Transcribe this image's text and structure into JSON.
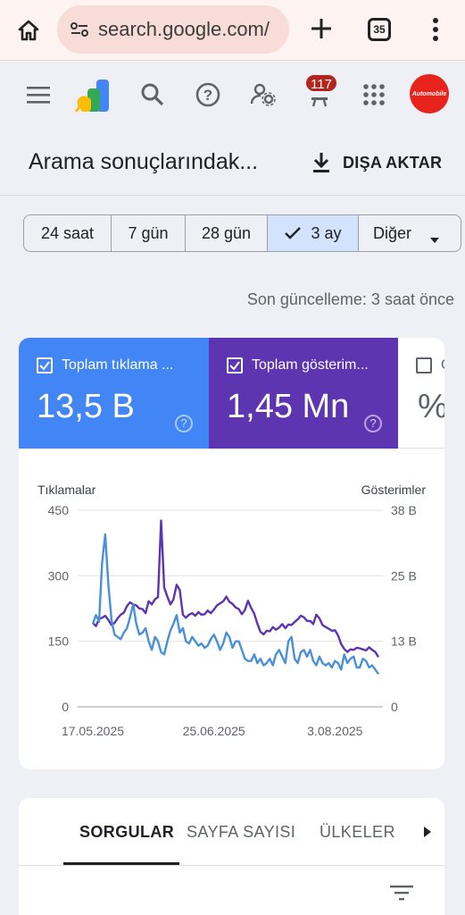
{
  "browser": {
    "url": "search.google.com/",
    "tab_count": "35"
  },
  "header": {
    "notification_count": "117",
    "avatar_text": "Automobile"
  },
  "page": {
    "title": "Arama sonuçlarındak...",
    "export_label": "DIŞA AKTAR"
  },
  "date_range": {
    "options": [
      "24 saat",
      "7 gün",
      "28 gün",
      "3 ay",
      "Diğer"
    ],
    "selected": "3 ay"
  },
  "last_update": "Son güncelleme: 3 saat önce",
  "metrics": {
    "clicks": {
      "label": "Toplam tıklama ...",
      "value": "13,5 B",
      "color": "#4285f4"
    },
    "impressions": {
      "label": "Toplam gösterim...",
      "value": "1,45 Mn",
      "color": "#5e35b1"
    },
    "ctr": {
      "label": "O",
      "value": "%"
    }
  },
  "chart_data": {
    "type": "line",
    "y_left_label": "Tıklamalar",
    "y_right_label": "Gösterimler",
    "y_left_ticks": [
      "450",
      "300",
      "150",
      "0"
    ],
    "y_right_ticks": [
      "38 B",
      "25 B",
      "13 B",
      "0"
    ],
    "ylim_left": [
      0,
      450
    ],
    "ylim_right": [
      0,
      38000
    ],
    "x_tick_labels": [
      "17.05.2025",
      "25.06.2025",
      "3.08.2025"
    ],
    "x_tick_days": [
      1,
      40,
      79
    ],
    "grid": true,
    "series": [
      {
        "name": "Gösterimler",
        "axis": "right",
        "color": "#5e35b1",
        "values": [
          16200,
          15600,
          17000,
          17200,
          17600,
          16800,
          15800,
          16200,
          17100,
          17800,
          18200,
          19500,
          20200,
          19800,
          19600,
          19000,
          18900,
          18100,
          20400,
          19800,
          20800,
          21200,
          36000,
          23000,
          21300,
          19800,
          20800,
          23600,
          22600,
          17800,
          17200,
          17800,
          18100,
          17600,
          18300,
          17800,
          17900,
          18600,
          18100,
          18800,
          19600,
          20000,
          20400,
          21300,
          20300,
          19900,
          19200,
          18900,
          17900,
          18700,
          20500,
          19100,
          18000,
          16100,
          14500,
          14000,
          14700,
          14600,
          15400,
          14900,
          15300,
          16000,
          15200,
          15900,
          15800,
          16400,
          16900,
          17600,
          17300,
          16600,
          16600,
          16000,
          17800,
          17100,
          15800,
          15400,
          15100,
          14700,
          14800,
          13800,
          12100,
          11200,
          10600,
          11100,
          11000,
          11400,
          11300,
          11100,
          10900,
          11500,
          11000,
          10600,
          9600
        ],
        "note": "approx. daily impressions"
      },
      {
        "name": "Tıklamalar",
        "axis": "left",
        "color": "#4a90d9",
        "values": [
          190,
          210,
          195,
          330,
          395,
          280,
          200,
          165,
          160,
          155,
          170,
          180,
          205,
          235,
          190,
          165,
          170,
          180,
          150,
          130,
          160,
          150,
          125,
          120,
          150,
          175,
          190,
          210,
          170,
          180,
          150,
          145,
          160,
          150,
          140,
          145,
          135,
          140,
          155,
          165,
          150,
          130,
          145,
          170,
          160,
          135,
          150,
          150,
          130,
          110,
          105,
          105,
          120,
          100,
          110,
          95,
          100,
          110,
          95,
          120,
          130,
          115,
          100,
          150,
          160,
          110,
          100,
          125,
          130,
          115,
          130,
          105,
          95,
          115,
          100,
          95,
          100,
          90,
          105,
          100,
          85,
          120,
          100,
          110,
          115,
          90,
          90,
          110,
          105,
          90,
          95,
          85,
          75
        ],
        "note": "approx. daily clicks"
      }
    ]
  },
  "queries": {
    "tabs": [
      "SORGULAR",
      "SAYFA SAYISI",
      "ÜLKELER"
    ],
    "active_tab": "SORGULAR"
  }
}
